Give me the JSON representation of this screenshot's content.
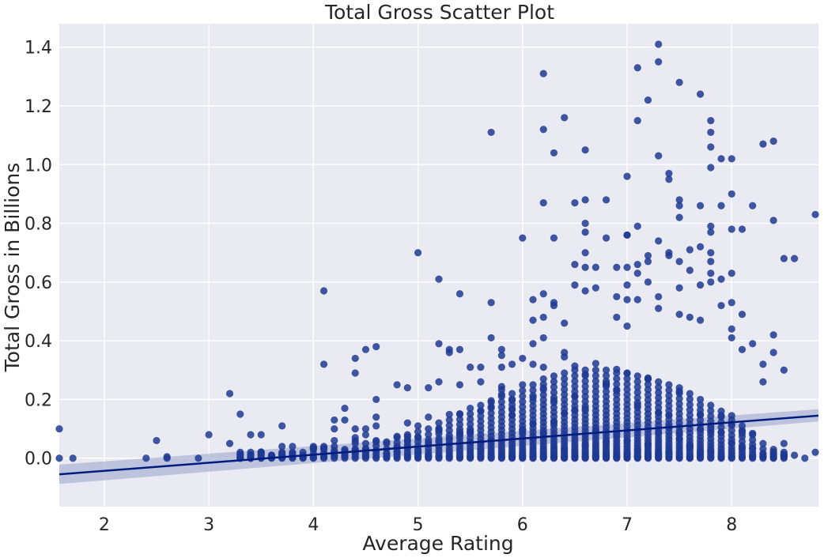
{
  "chart_data": {
    "type": "scatter",
    "title": "Total Gross Scatter Plot",
    "xlabel": "Average Rating",
    "ylabel": "Total Gross in Billions",
    "xlim": [
      1.57,
      8.83
    ],
    "ylim": [
      -0.165,
      1.48
    ],
    "x_ticks": [
      2,
      3,
      4,
      5,
      6,
      7,
      8
    ],
    "y_ticks": [
      0.0,
      0.2,
      0.4,
      0.6,
      0.8,
      1.0,
      1.2,
      1.4
    ],
    "x_tick_labels": [
      "2",
      "3",
      "4",
      "5",
      "6",
      "7",
      "8"
    ],
    "y_tick_labels": [
      "0.0",
      "0.2",
      "0.4",
      "0.6",
      "0.8",
      "1.0",
      "1.2",
      "1.4"
    ],
    "grid": true,
    "legend": "none",
    "colors": {
      "points": "#1f3a93",
      "line": "#001c7f",
      "band": "#aeb6d6",
      "background": "#eaeaf2",
      "grid": "#ffffff"
    },
    "regression": {
      "x": [
        1.57,
        8.83
      ],
      "y": [
        -0.055,
        0.145
      ]
    },
    "confidence_band": {
      "x": [
        1.57,
        8.83
      ],
      "lower": [
        -0.088,
        0.125
      ],
      "upper": [
        -0.022,
        0.167
      ]
    },
    "outliers": [
      [
        1.57,
        0.1
      ],
      [
        1.57,
        0.0
      ],
      [
        1.7,
        0.0
      ],
      [
        2.4,
        0.0
      ],
      [
        2.5,
        0.06
      ],
      [
        2.6,
        0.0
      ],
      [
        2.6,
        0.005
      ],
      [
        2.9,
        0.0
      ],
      [
        3.0,
        0.08
      ],
      [
        3.2,
        0.22
      ],
      [
        3.2,
        0.05
      ],
      [
        3.3,
        0.15
      ],
      [
        3.3,
        0.0
      ],
      [
        3.4,
        0.08
      ],
      [
        3.4,
        0.0
      ],
      [
        3.5,
        0.08
      ],
      [
        3.5,
        0.02
      ],
      [
        3.6,
        0.01
      ],
      [
        3.7,
        0.11
      ],
      [
        3.7,
        0.04
      ],
      [
        3.8,
        0.04
      ],
      [
        3.9,
        0.02
      ],
      [
        4.0,
        0.04
      ],
      [
        4.1,
        0.32
      ],
      [
        4.1,
        0.57
      ],
      [
        4.1,
        0.04
      ],
      [
        4.2,
        0.13
      ],
      [
        4.2,
        0.1
      ],
      [
        4.2,
        0.06
      ],
      [
        4.3,
        0.17
      ],
      [
        4.3,
        0.13
      ],
      [
        4.4,
        0.34
      ],
      [
        4.4,
        0.29
      ],
      [
        4.4,
        0.1
      ],
      [
        4.4,
        0.07
      ],
      [
        4.5,
        0.37
      ],
      [
        4.5,
        0.1
      ],
      [
        4.5,
        0.08
      ],
      [
        4.6,
        0.38
      ],
      [
        4.6,
        0.2
      ],
      [
        4.6,
        0.14
      ],
      [
        4.6,
        0.11
      ],
      [
        4.8,
        0.25
      ],
      [
        4.9,
        0.24
      ],
      [
        4.9,
        0.12
      ],
      [
        5.0,
        0.7
      ],
      [
        5.0,
        0.11
      ],
      [
        5.1,
        0.24
      ],
      [
        5.1,
        0.14
      ],
      [
        5.2,
        0.39
      ],
      [
        5.2,
        0.26
      ],
      [
        5.2,
        0.61
      ],
      [
        5.3,
        0.37
      ],
      [
        5.3,
        0.36
      ],
      [
        5.4,
        0.56
      ],
      [
        5.4,
        0.37
      ],
      [
        5.4,
        0.25
      ],
      [
        5.5,
        0.31
      ],
      [
        5.6,
        0.31
      ],
      [
        5.6,
        0.26
      ],
      [
        5.7,
        1.11
      ],
      [
        5.7,
        0.53
      ],
      [
        5.7,
        0.41
      ],
      [
        5.8,
        0.37
      ],
      [
        5.8,
        0.35
      ],
      [
        5.8,
        0.31
      ],
      [
        5.9,
        0.32
      ],
      [
        6.0,
        0.75
      ],
      [
        6.0,
        0.34
      ],
      [
        6.0,
        0.25
      ],
      [
        6.1,
        0.54
      ],
      [
        6.1,
        0.47
      ],
      [
        6.1,
        0.39
      ],
      [
        6.1,
        0.32
      ],
      [
        6.2,
        1.31
      ],
      [
        6.2,
        1.12
      ],
      [
        6.2,
        0.87
      ],
      [
        6.2,
        0.56
      ],
      [
        6.2,
        0.48
      ],
      [
        6.2,
        0.41
      ],
      [
        6.3,
        1.04
      ],
      [
        6.3,
        0.75
      ],
      [
        6.3,
        0.53
      ],
      [
        6.3,
        0.52
      ],
      [
        6.4,
        1.16
      ],
      [
        6.4,
        0.46
      ],
      [
        6.4,
        0.36
      ],
      [
        6.5,
        0.87
      ],
      [
        6.5,
        0.66
      ],
      [
        6.5,
        0.59
      ],
      [
        6.6,
        1.05
      ],
      [
        6.6,
        0.88
      ],
      [
        6.6,
        0.8
      ],
      [
        6.6,
        0.77
      ],
      [
        6.6,
        0.7
      ],
      [
        6.6,
        0.65
      ],
      [
        6.6,
        0.57
      ],
      [
        6.7,
        0.65
      ],
      [
        6.7,
        0.58
      ],
      [
        6.8,
        0.88
      ],
      [
        6.8,
        0.75
      ],
      [
        6.9,
        0.65
      ],
      [
        6.9,
        0.55
      ],
      [
        6.9,
        0.48
      ],
      [
        7.0,
        0.96
      ],
      [
        7.0,
        0.76
      ],
      [
        7.0,
        0.76
      ],
      [
        7.0,
        0.65
      ],
      [
        7.0,
        0.59
      ],
      [
        7.0,
        0.54
      ],
      [
        7.0,
        0.45
      ],
      [
        7.1,
        1.33
      ],
      [
        7.1,
        1.15
      ],
      [
        7.1,
        0.79
      ],
      [
        7.1,
        0.66
      ],
      [
        7.1,
        0.63
      ],
      [
        7.1,
        0.54
      ],
      [
        7.2,
        1.22
      ],
      [
        7.2,
        0.69
      ],
      [
        7.2,
        0.67
      ],
      [
        7.2,
        0.6
      ],
      [
        7.3,
        1.41
      ],
      [
        7.3,
        1.35
      ],
      [
        7.3,
        1.03
      ],
      [
        7.3,
        0.74
      ],
      [
        7.3,
        0.55
      ],
      [
        7.3,
        0.51
      ],
      [
        7.4,
        0.97
      ],
      [
        7.4,
        0.95
      ],
      [
        7.4,
        0.7
      ],
      [
        7.4,
        0.69
      ],
      [
        7.5,
        1.28
      ],
      [
        7.5,
        0.88
      ],
      [
        7.5,
        0.86
      ],
      [
        7.5,
        0.82
      ],
      [
        7.5,
        0.67
      ],
      [
        7.5,
        0.58
      ],
      [
        7.5,
        0.49
      ],
      [
        7.6,
        0.71
      ],
      [
        7.6,
        0.64
      ],
      [
        7.6,
        0.48
      ],
      [
        7.7,
        1.24
      ],
      [
        7.7,
        0.86
      ],
      [
        7.7,
        0.72
      ],
      [
        7.7,
        0.59
      ],
      [
        7.7,
        0.47
      ],
      [
        7.8,
        1.15
      ],
      [
        7.8,
        1.11
      ],
      [
        7.8,
        1.06
      ],
      [
        7.8,
        0.99
      ],
      [
        7.8,
        0.79
      ],
      [
        7.8,
        0.77
      ],
      [
        7.8,
        0.7
      ],
      [
        7.8,
        0.67
      ],
      [
        7.8,
        0.63
      ],
      [
        7.8,
        0.6
      ],
      [
        7.9,
        1.02
      ],
      [
        7.9,
        0.86
      ],
      [
        7.9,
        0.61
      ],
      [
        7.9,
        0.52
      ],
      [
        8.0,
        1.02
      ],
      [
        8.0,
        0.9
      ],
      [
        8.0,
        0.78
      ],
      [
        8.0,
        0.63
      ],
      [
        8.0,
        0.53
      ],
      [
        8.0,
        0.44
      ],
      [
        8.0,
        0.41
      ],
      [
        8.1,
        0.78
      ],
      [
        8.1,
        0.49
      ],
      [
        8.1,
        0.37
      ],
      [
        8.2,
        0.86
      ],
      [
        8.2,
        0.39
      ],
      [
        8.3,
        1.07
      ],
      [
        8.3,
        0.32
      ],
      [
        8.3,
        0.26
      ],
      [
        8.4,
        1.08
      ],
      [
        8.4,
        0.81
      ],
      [
        8.4,
        0.42
      ],
      [
        8.4,
        0.36
      ],
      [
        8.5,
        0.68
      ],
      [
        8.5,
        0.3
      ],
      [
        8.5,
        0.05
      ],
      [
        8.6,
        0.68
      ],
      [
        8.6,
        0.01
      ],
      [
        8.7,
        0.0
      ],
      [
        8.8,
        0.83
      ],
      [
        8.8,
        0.02
      ]
    ],
    "clusters": [
      {
        "x": 3.3,
        "top": 0.02
      },
      {
        "x": 3.4,
        "top": 0.02
      },
      {
        "x": 3.5,
        "top": 0.02
      },
      {
        "x": 3.6,
        "top": 0.01
      },
      {
        "x": 3.7,
        "top": 0.02
      },
      {
        "x": 3.8,
        "top": 0.02
      },
      {
        "x": 3.9,
        "top": 0.01
      },
      {
        "x": 4.0,
        "top": 0.03
      },
      {
        "x": 4.1,
        "top": 0.03
      },
      {
        "x": 4.2,
        "top": 0.04
      },
      {
        "x": 4.3,
        "top": 0.03
      },
      {
        "x": 4.4,
        "top": 0.05
      },
      {
        "x": 4.5,
        "top": 0.05
      },
      {
        "x": 4.6,
        "top": 0.06
      },
      {
        "x": 4.7,
        "top": 0.05
      },
      {
        "x": 4.8,
        "top": 0.07
      },
      {
        "x": 4.9,
        "top": 0.08
      },
      {
        "x": 5.0,
        "top": 0.09
      },
      {
        "x": 5.1,
        "top": 0.1
      },
      {
        "x": 5.2,
        "top": 0.12
      },
      {
        "x": 5.3,
        "top": 0.13
      },
      {
        "x": 5.4,
        "top": 0.15
      },
      {
        "x": 5.5,
        "top": 0.17
      },
      {
        "x": 5.6,
        "top": 0.18
      },
      {
        "x": 5.7,
        "top": 0.19
      },
      {
        "x": 5.8,
        "top": 0.21
      },
      {
        "x": 5.9,
        "top": 0.22
      },
      {
        "x": 6.0,
        "top": 0.23
      },
      {
        "x": 6.1,
        "top": 0.25
      },
      {
        "x": 6.2,
        "top": 0.27
      },
      {
        "x": 6.3,
        "top": 0.28
      },
      {
        "x": 6.4,
        "top": 0.29
      },
      {
        "x": 6.5,
        "top": 0.3
      },
      {
        "x": 6.6,
        "top": 0.3
      },
      {
        "x": 6.7,
        "top": 0.3
      },
      {
        "x": 6.8,
        "top": 0.3
      },
      {
        "x": 6.9,
        "top": 0.29
      },
      {
        "x": 7.0,
        "top": 0.29
      },
      {
        "x": 7.1,
        "top": 0.28
      },
      {
        "x": 7.2,
        "top": 0.27
      },
      {
        "x": 7.3,
        "top": 0.26
      },
      {
        "x": 7.4,
        "top": 0.25
      },
      {
        "x": 7.5,
        "top": 0.24
      },
      {
        "x": 7.6,
        "top": 0.22
      },
      {
        "x": 7.7,
        "top": 0.2
      },
      {
        "x": 7.8,
        "top": 0.18
      },
      {
        "x": 7.9,
        "top": 0.16
      },
      {
        "x": 8.0,
        "top": 0.13
      },
      {
        "x": 8.1,
        "top": 0.11
      },
      {
        "x": 8.2,
        "top": 0.08
      },
      {
        "x": 8.3,
        "top": 0.05
      },
      {
        "x": 8.4,
        "top": 0.03
      },
      {
        "x": 8.5,
        "top": 0.02
      }
    ]
  }
}
